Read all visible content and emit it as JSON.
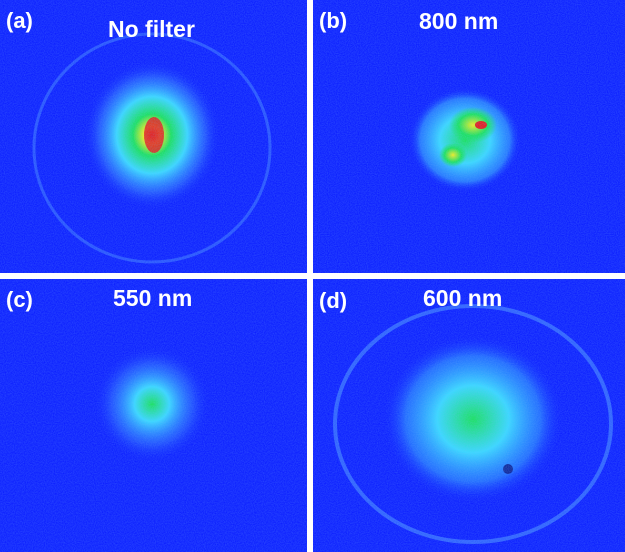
{
  "colors": {
    "background_blue": "#0a1cff",
    "ring": "#3f7dff",
    "cyan": "#39d9ff",
    "green": "#19e35a",
    "yellow": "#f6f01c",
    "red": "#e8191a"
  },
  "panels": [
    {
      "letter": "(a)",
      "caption": "No filter"
    },
    {
      "letter": "(b)",
      "caption": "800 nm"
    },
    {
      "letter": "(c)",
      "caption": "550 nm"
    },
    {
      "letter": "(d)",
      "caption": "600 nm"
    }
  ]
}
